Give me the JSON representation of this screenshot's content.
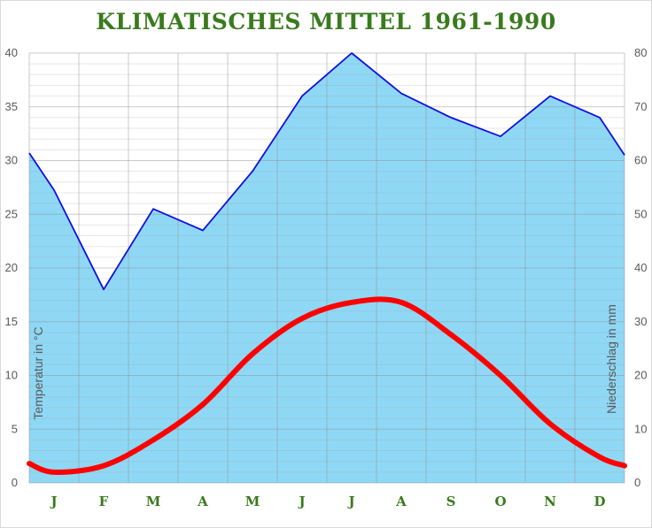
{
  "chart_data": {
    "type": "area",
    "title": "KLIMATISCHES MITTEL 1961-1990",
    "categories": [
      "J",
      "F",
      "M",
      "A",
      "M",
      "J",
      "J",
      "A",
      "S",
      "O",
      "N",
      "D"
    ],
    "y_left": {
      "label": "Temperatur in °C",
      "range": [
        0,
        40
      ],
      "ticks": [
        "0",
        "5",
        "10",
        "15",
        "20",
        "25",
        "30",
        "35",
        "40"
      ]
    },
    "y_right": {
      "label": "Niederschlag in mm",
      "range": [
        0,
        80
      ],
      "ticks": [
        "0",
        "10",
        "20",
        "30",
        "40",
        "50",
        "60",
        "70",
        "80"
      ]
    },
    "grid": true,
    "series": [
      {
        "kind": "area",
        "axis": "right",
        "color": "#8fd8f5",
        "line_color": "#1010e0",
        "start": 61.4,
        "values": [
          54.5,
          36,
          51,
          47,
          58,
          72,
          80,
          72.5,
          68,
          64.5,
          72,
          68
        ],
        "end": 61
      },
      {
        "kind": "line",
        "axis": "left",
        "color": "#ff0000",
        "start": 1.8,
        "values": [
          1,
          1.6,
          4,
          7.3,
          12,
          15.3,
          16.8,
          16.8,
          13.8,
          10,
          5.5,
          2.4
        ],
        "end": 1.6
      }
    ]
  }
}
